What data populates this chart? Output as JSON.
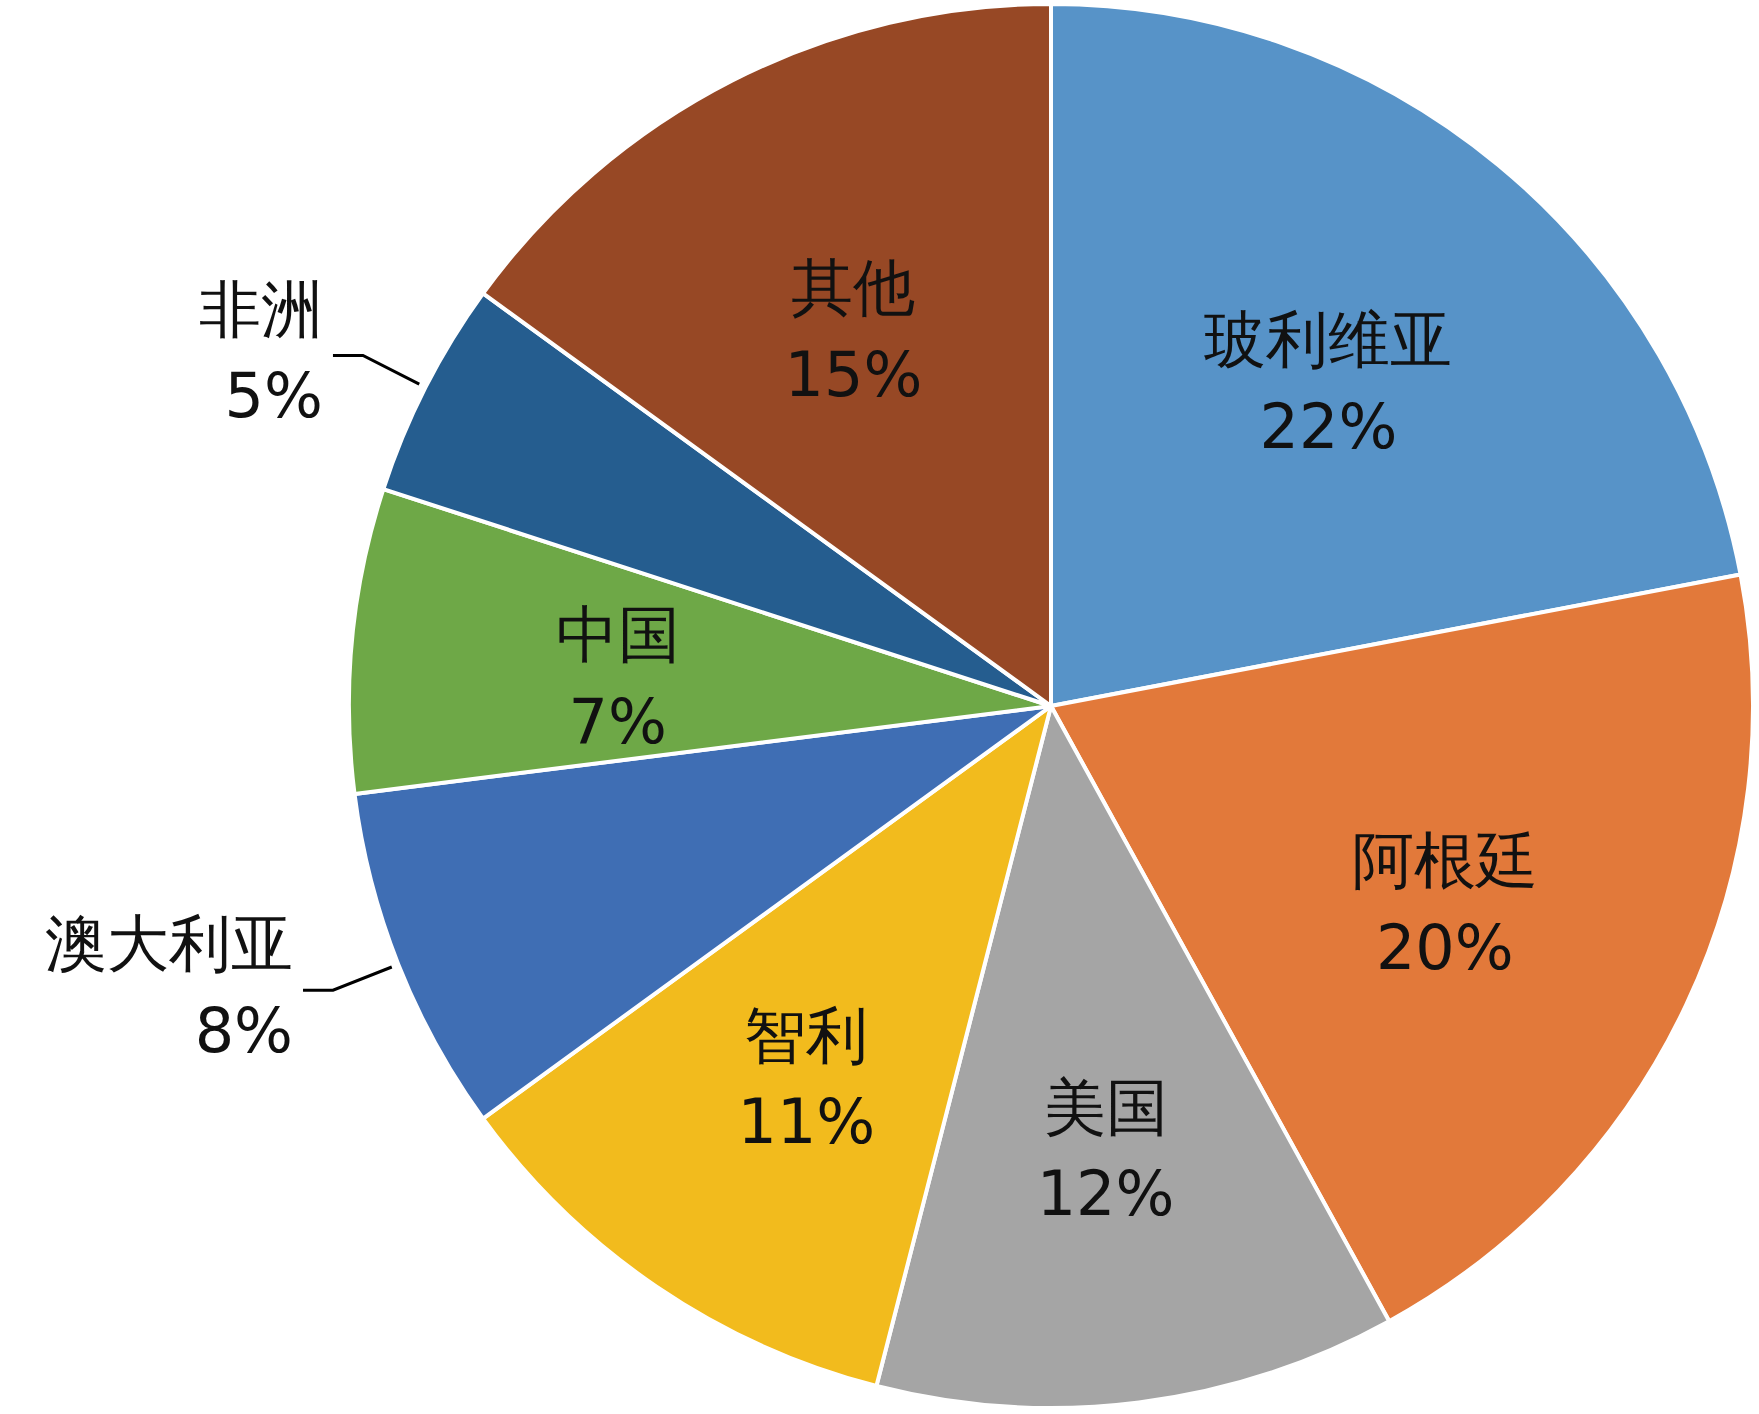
{
  "chart_data": {
    "type": "pie",
    "categories": [
      "玻利维亚",
      "阿根廷",
      "美国",
      "智利",
      "澳大利亚",
      "中国",
      "非洲",
      "其他"
    ],
    "values": [
      22,
      20,
      12,
      11,
      8,
      7,
      5,
      15
    ],
    "value_labels": [
      "22%",
      "20%",
      "12%",
      "11%",
      "8%",
      "7%",
      "5%",
      "15%"
    ],
    "colors": [
      "#5793c8",
      "#e2793a",
      "#a5a5a5",
      "#f2bb1d",
      "#3f6eb4",
      "#6ea847",
      "#255d8f",
      "#974825"
    ]
  }
}
